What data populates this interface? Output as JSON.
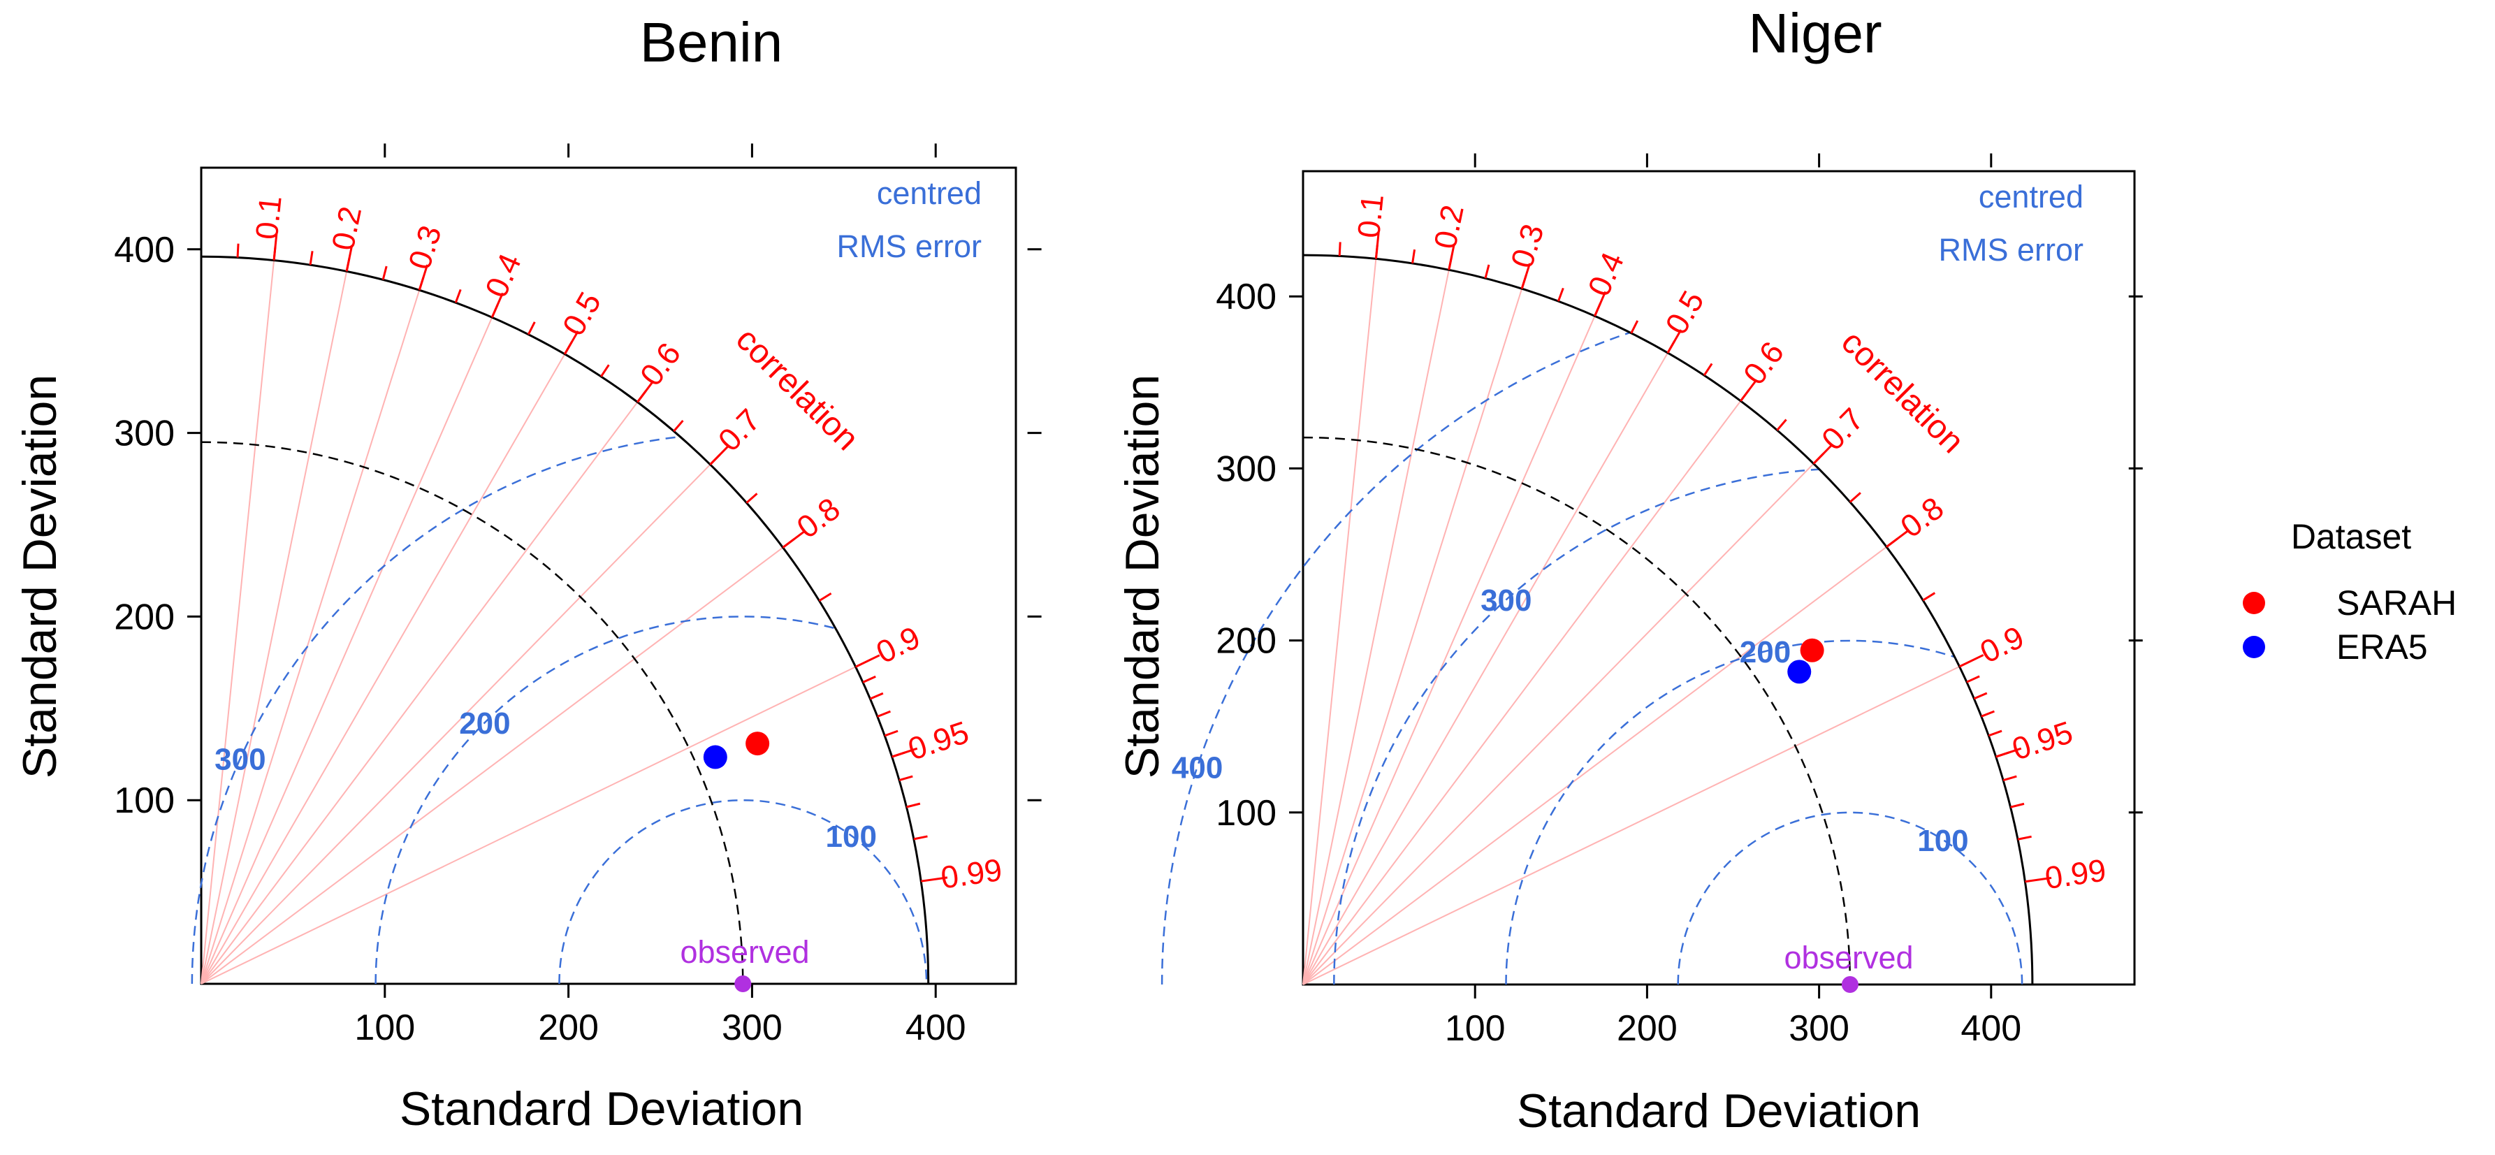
{
  "chart_data": [
    {
      "type": "taylor",
      "title": "Benin",
      "xlabel": "Standard Deviation",
      "ylabel": "Standard Deviation",
      "xlim": [
        0,
        450
      ],
      "ylim": [
        0,
        450
      ],
      "x_ticks": [
        100,
        200,
        300,
        400
      ],
      "y_ticks": [
        100,
        200,
        300,
        400
      ],
      "max_sd": 396,
      "observed_sd": 295,
      "correlation_label": "correlation",
      "correlation_ticks": [
        "0.1",
        "0.2",
        "0.3",
        "0.4",
        "0.5",
        "0.6",
        "0.7",
        "0.8",
        "0.9",
        "0.95",
        "0.99"
      ],
      "correlation_lines": [
        0.1,
        0.2,
        0.3,
        0.4,
        0.5,
        0.6,
        0.7,
        0.8,
        0.9
      ],
      "rms_title": [
        "centred",
        "RMS error"
      ],
      "rms_contours": [
        100,
        200,
        300
      ],
      "observed_label": "observed",
      "points": [
        {
          "name": "SARAH",
          "sd": 330,
          "correlation": 0.918,
          "color": "#ff0000"
        },
        {
          "name": "ERA5",
          "sd": 306,
          "correlation": 0.915,
          "color": "#0000ff"
        }
      ]
    },
    {
      "type": "taylor",
      "title": "Niger",
      "xlabel": "Standard Deviation",
      "ylabel": "Standard Deviation",
      "xlim": [
        0,
        480
      ],
      "ylim": [
        0,
        475
      ],
      "x_ticks": [
        100,
        200,
        300,
        400
      ],
      "y_ticks": [
        100,
        200,
        300,
        400
      ],
      "max_sd": 424,
      "observed_sd": 318,
      "correlation_label": "correlation",
      "correlation_ticks": [
        "0.1",
        "0.2",
        "0.3",
        "0.4",
        "0.5",
        "0.6",
        "0.7",
        "0.8",
        "0.9",
        "0.95",
        "0.99"
      ],
      "correlation_lines": [
        0.1,
        0.2,
        0.3,
        0.4,
        0.5,
        0.6,
        0.7,
        0.8,
        0.9
      ],
      "rms_title": [
        "centred",
        "RMS error"
      ],
      "rms_contours": [
        100,
        200,
        300,
        400
      ],
      "observed_label": "observed",
      "points": [
        {
          "name": "SARAH",
          "sd": 354,
          "correlation": 0.836,
          "color": "#ff0000"
        },
        {
          "name": "ERA5",
          "sd": 341,
          "correlation": 0.846,
          "color": "#0000ff"
        }
      ]
    }
  ],
  "legend": {
    "title": "Dataset",
    "items": [
      {
        "label": "SARAH",
        "color": "#ff0000"
      },
      {
        "label": "ERA5",
        "color": "#0000ff"
      }
    ]
  },
  "colors": {
    "correlation": "#ff0000",
    "correlation_lines": "#ffb3b3",
    "rms": "#3a6fd8",
    "observed": "#b030e0",
    "axis": "#000000"
  }
}
